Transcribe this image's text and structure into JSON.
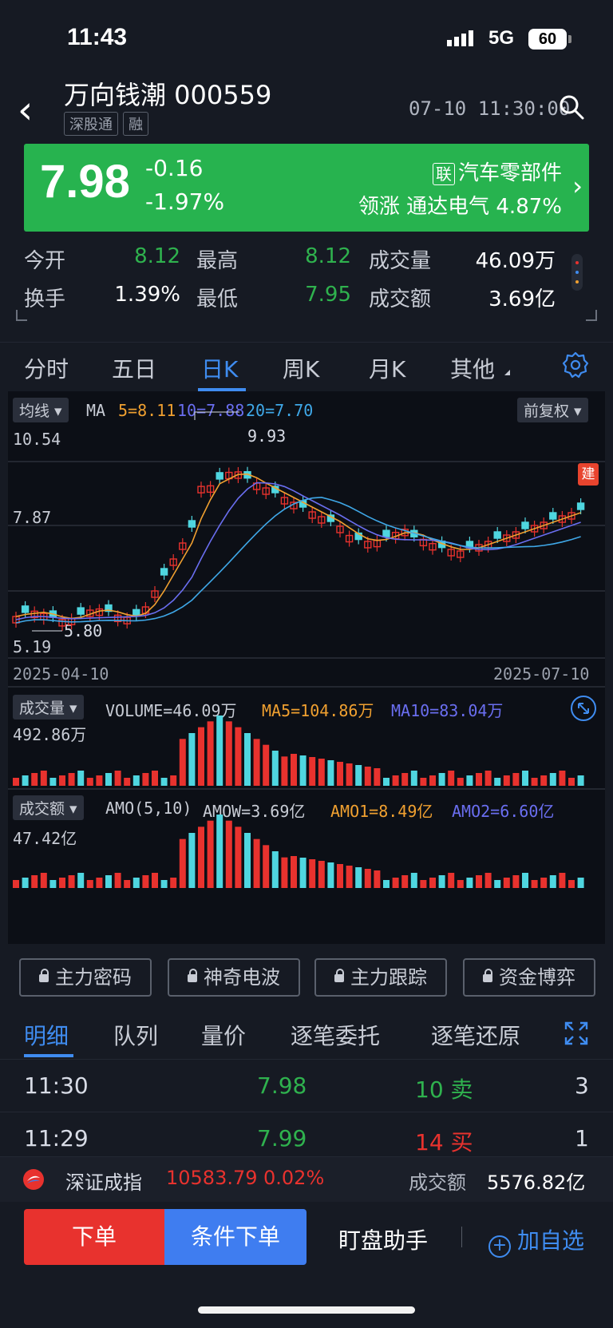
{
  "status": {
    "time": "11:43",
    "network": "5G",
    "battery": "60"
  },
  "header": {
    "title": "万向钱潮 000559",
    "tags": [
      "深股通",
      "融"
    ],
    "datetime": "07-10 11:30:00"
  },
  "quote": {
    "price": "7.98",
    "change": "-0.16",
    "change_pct": "-1.97%",
    "sector_tag": "联",
    "sector": "汽车零部件",
    "lead_label": "领涨",
    "lead_stock": "通达电气",
    "lead_pct": "4.87%"
  },
  "stats": {
    "open_label": "今开",
    "open": "8.12",
    "high_label": "最高",
    "high": "8.12",
    "vol_label": "成交量",
    "vol": "46.09万",
    "turnover_label": "换手",
    "turnover": "1.39%",
    "low_label": "最低",
    "low": "7.95",
    "amount_label": "成交额",
    "amount": "3.69亿"
  },
  "tabs": [
    "分时",
    "五日",
    "日K",
    "周K",
    "月K",
    "其他"
  ],
  "chart": {
    "ma_btn": "均线",
    "ma_label": "MA",
    "ma5": "5=8.11",
    "ma10": "10=7.88",
    "ma20": "20=7.70",
    "adj_btn": "前复权",
    "y_top": "10.54",
    "y_mid": "7.87",
    "y_bot": "5.19",
    "max_label": "9.93",
    "min_label": "5.80",
    "build_tag": "建",
    "date_start": "2025-04-10",
    "date_end": "2025-07-10",
    "vol_btn": "成交量",
    "vol_text": "VOLUME=46.09万",
    "vol_ma5": "MA5=104.86万",
    "vol_ma10": "MA10=83.04万",
    "vol_max": "492.86万",
    "amo_btn": "成交额",
    "amo_text": "AMO(5,10)",
    "amow": "AMOW=3.69亿",
    "amo1": "AMO1=8.49亿",
    "amo2": "AMO2=6.60亿",
    "amo_max": "47.42亿",
    "colors": {
      "up": "#e8322e",
      "down": "#4fd6e0",
      "ma5": "#f0a030",
      "ma10": "#6a6ef0",
      "ma20": "#3fa8e8"
    }
  },
  "chart_data": {
    "type": "candlestick",
    "x_range": [
      "2025-04-10",
      "2025-07-10"
    ],
    "y_range": [
      5.19,
      10.54
    ],
    "highest": 9.93,
    "lowest": 5.8,
    "ma": {
      "ma5": 8.11,
      "ma10": 7.88,
      "ma20": 7.7
    },
    "last_close": 7.98
  },
  "locks": [
    "主力密码",
    "神奇电波",
    "主力跟踪",
    "资金博弈"
  ],
  "detail_tabs": [
    "明细",
    "队列",
    "量价",
    "逐笔委托",
    "逐笔还原"
  ],
  "trades": [
    {
      "time": "11:30",
      "price": "7.98",
      "vol": "10 卖",
      "count": "3",
      "side": "sell"
    },
    {
      "time": "11:29",
      "price": "7.99",
      "vol": "14 买",
      "count": "1",
      "side": "buy"
    }
  ],
  "index": {
    "name": "深证成指",
    "value": "10583.79",
    "pct": "0.02%",
    "amount_label": "成交额",
    "amount": "5576.82亿"
  },
  "bottom": {
    "order": "下单",
    "cond_order": "条件下单",
    "watch": "盯盘助手",
    "fav": "加自选"
  }
}
